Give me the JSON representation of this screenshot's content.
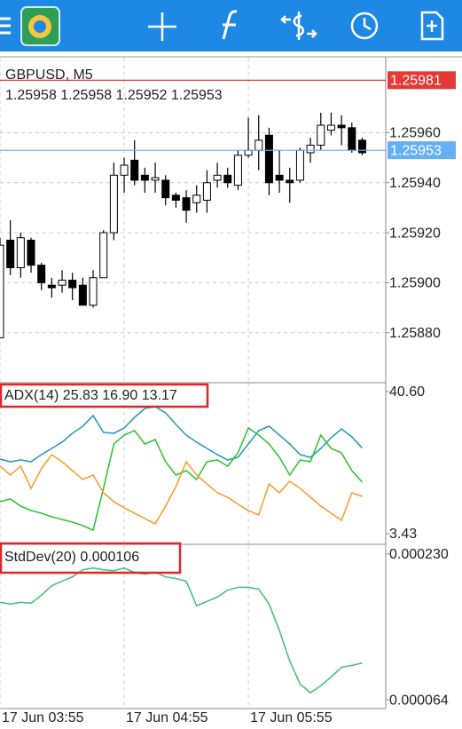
{
  "chart_data": [
    {
      "type": "candlestick",
      "title": "GBPUSD, M5",
      "subtitle": "1.25958 1.25958 1.25952 1.25953",
      "categories": [
        "17 Jun 03:55",
        null,
        null,
        null,
        null,
        null,
        null,
        null,
        null,
        null,
        null,
        null,
        "17 Jun 04:55",
        null,
        null,
        null,
        null,
        null,
        null,
        null,
        null,
        null,
        null,
        null,
        "17 Jun 05:55",
        null,
        null,
        null,
        null,
        null,
        null,
        null,
        null,
        null,
        null,
        null
      ],
      "open": [
        1.25878,
        1.25917,
        1.25906,
        1.25917,
        1.25907,
        1.25899,
        1.25899,
        1.25901,
        1.25899,
        1.25891,
        1.25902,
        1.2592,
        1.25943,
        1.25949,
        1.25943,
        1.25941,
        1.25941,
        1.25935,
        1.25934,
        1.25932,
        1.25933,
        1.25941,
        1.25943,
        1.25939,
        1.25951,
        1.25953,
        1.25959,
        1.25943,
        1.25941,
        1.25941,
        1.25952,
        1.25955,
        1.25961,
        1.25963,
        1.25962,
        1.25957
      ],
      "high": [
        1.25918,
        1.25925,
        1.2592,
        1.25918,
        1.25908,
        1.25902,
        1.25905,
        1.25904,
        1.25902,
        1.25905,
        1.25921,
        1.25948,
        1.2595,
        1.25957,
        1.25946,
        1.25948,
        1.25943,
        1.25936,
        1.25937,
        1.25939,
        1.25945,
        1.25948,
        1.25946,
        1.25953,
        1.25966,
        1.25967,
        1.25962,
        1.25953,
        1.25946,
        1.25954,
        1.25958,
        1.25968,
        1.25968,
        1.25967,
        1.25964,
        1.25958
      ],
      "low": [
        1.25878,
        1.25903,
        1.25902,
        1.25904,
        1.25897,
        1.25894,
        1.25896,
        1.25893,
        1.25891,
        1.2589,
        1.25902,
        1.25917,
        1.25936,
        1.25939,
        1.25936,
        1.25936,
        1.25931,
        1.2593,
        1.25924,
        1.25928,
        1.25928,
        1.25938,
        1.25938,
        1.25937,
        1.2595,
        1.25945,
        1.25935,
        1.25936,
        1.25932,
        1.2594,
        1.25948,
        1.25953,
        1.25959,
        1.25955,
        1.25952,
        1.25951
      ],
      "close": [
        1.25915,
        1.25906,
        1.25918,
        1.25907,
        1.259,
        1.25898,
        1.25901,
        1.25898,
        1.25891,
        1.25902,
        1.2592,
        1.25943,
        1.25947,
        1.25941,
        1.25941,
        1.25942,
        1.25934,
        1.25933,
        1.25929,
        1.25935,
        1.2594,
        1.25943,
        1.2594,
        1.25951,
        1.25953,
        1.25957,
        1.2594,
        1.25941,
        1.2594,
        1.25953,
        1.25955,
        1.25963,
        1.25963,
        1.25962,
        1.25953,
        1.25952
      ],
      "up_color": "#ffffff",
      "down_color": "#000000",
      "ask": 1.25981,
      "ask_color": "#e53935",
      "bid": 1.25953,
      "bid_color": "#64b0f4",
      "ylim": [
        1.2586,
        1.2599
      ],
      "yticks": [
        {
          "value": 1.2596,
          "label": "1.25960"
        },
        {
          "value": 1.2594,
          "label": "1.25940"
        },
        {
          "value": 1.2592,
          "label": "1.25920"
        },
        {
          "value": 1.259,
          "label": "1.25900"
        },
        {
          "value": 1.2588,
          "label": "1.25880"
        }
      ],
      "grid": true
    },
    {
      "type": "line",
      "title": "ADX(14) 25.83 16.90 13.17",
      "series": [
        {
          "color": "#2a9db5",
          "values": [
            22.94,
            22.24,
            22.71,
            22.24,
            24.1,
            25.73,
            27.36,
            29.68,
            31.54,
            34.32,
            29.91,
            29.68,
            31.07,
            33.86,
            36.18,
            36.65,
            35.02,
            32.0,
            29.21,
            27.36,
            25.73,
            24.1,
            22.71,
            23.41,
            26.89,
            30.38,
            31.54,
            29.21,
            26.89,
            24.1,
            23.41,
            25.73,
            28.52,
            30.84,
            28.75,
            25.83
          ]
        },
        {
          "color": "#36c23a",
          "values": [
            11.79,
            12.49,
            10.63,
            9.47,
            8.77,
            7.84,
            7.15,
            6.45,
            5.52,
            4.36,
            15.28,
            26.89,
            29.21,
            30.38,
            26.89,
            28.05,
            22.25,
            18.76,
            19.92,
            17.6,
            22.25,
            22.71,
            21.08,
            24.57,
            31.07,
            29.21,
            26.89,
            23.41,
            18.76,
            22.71,
            22.25,
            29.21,
            25.73,
            24.57,
            19.92,
            16.9
          ]
        },
        {
          "color": "#f5a030",
          "values": [
            21.08,
            18.76,
            21.08,
            15.28,
            20.39,
            24.1,
            22.25,
            19.92,
            17.6,
            18.76,
            14.12,
            11.79,
            10.17,
            8.77,
            7.38,
            5.99,
            10.63,
            15.74,
            22.25,
            18.76,
            16.44,
            14.12,
            12.95,
            11.1,
            9.47,
            8.31,
            16.44,
            14.12,
            17.13,
            15.28,
            12.95,
            10.63,
            8.77,
            6.91,
            14.12,
            13.17
          ]
        }
      ],
      "ylim": [
        0.87,
        42.69
      ],
      "yticks": [
        {
          "value": 40.6,
          "label": "40.60"
        },
        3.43
      ]
    },
    {
      "type": "line",
      "title": "StdDev(20) 0.000106",
      "series": [
        {
          "color": "#4cc07a",
          "values": [
            0.000175,
            0.000173,
            0.000175,
            0.000174,
            0.000183,
            0.000194,
            0.000199,
            0.000204,
            0.000212,
            0.000214,
            0.000212,
            0.000211,
            0.000214,
            0.000209,
            0.000207,
            0.000209,
            0.000204,
            0.000202,
            0.000199,
            0.000171,
            0.000176,
            0.000181,
            0.000189,
            0.000192,
            0.000192,
            0.00019,
            0.000173,
            0.000143,
            0.000108,
            8.2e-05,
            7.2e-05,
            8e-05,
            9e-05,
            0.000101,
            0.000103,
            0.000106
          ]
        }
      ],
      "ylim": [
        5.4e-05,
        0.00024
      ],
      "yticks": [
        {
          "value": 0.00023,
          "label": "0.000230"
        },
        6.4e-05
      ]
    }
  ]
}
